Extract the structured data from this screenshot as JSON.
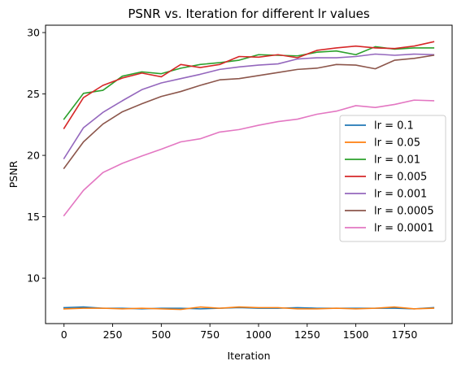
{
  "chart_data": {
    "type": "line",
    "title": "PSNR vs. Iteration for different lr values",
    "xlabel": "Iteration",
    "ylabel": "PSNR",
    "xlim": [
      -95,
      1995
    ],
    "ylim": [
      6.3,
      30.6
    ],
    "x_ticks": [
      0,
      250,
      500,
      750,
      1000,
      1250,
      1500,
      1750
    ],
    "y_ticks": [
      10,
      15,
      20,
      25,
      30
    ],
    "grid": false,
    "legend_position": "center-right",
    "x": [
      0,
      100,
      200,
      300,
      400,
      500,
      600,
      700,
      800,
      900,
      1000,
      1100,
      1200,
      1300,
      1400,
      1500,
      1600,
      1700,
      1800,
      1900
    ],
    "series": [
      {
        "name": "lr = 0.1",
        "color": "#1f77b4",
        "values": [
          7.6,
          7.65,
          7.55,
          7.55,
          7.5,
          7.55,
          7.55,
          7.5,
          7.55,
          7.6,
          7.55,
          7.55,
          7.6,
          7.55,
          7.55,
          7.55,
          7.55,
          7.55,
          7.5,
          7.6
        ]
      },
      {
        "name": "lr = 0.05",
        "color": "#ff7f0e",
        "values": [
          7.5,
          7.55,
          7.55,
          7.5,
          7.55,
          7.5,
          7.45,
          7.65,
          7.55,
          7.65,
          7.6,
          7.6,
          7.5,
          7.5,
          7.55,
          7.5,
          7.55,
          7.65,
          7.5,
          7.55
        ]
      },
      {
        "name": "lr = 0.01",
        "color": "#2ca02c",
        "values": [
          22.95,
          25.05,
          25.3,
          26.45,
          26.8,
          26.65,
          27.1,
          27.4,
          27.55,
          27.75,
          28.2,
          28.15,
          28.1,
          28.4,
          28.5,
          28.2,
          28.85,
          28.65,
          28.75,
          28.75
        ]
      },
      {
        "name": "lr = 0.005",
        "color": "#d62728",
        "values": [
          22.2,
          24.7,
          25.7,
          26.3,
          26.7,
          26.4,
          27.4,
          27.15,
          27.4,
          28.05,
          28.0,
          28.2,
          27.95,
          28.55,
          28.75,
          28.9,
          28.75,
          28.7,
          28.9,
          29.25
        ]
      },
      {
        "name": "lr = 0.001",
        "color": "#9467bd",
        "values": [
          19.75,
          22.25,
          23.5,
          24.45,
          25.35,
          25.9,
          26.25,
          26.6,
          27.0,
          27.2,
          27.35,
          27.45,
          27.85,
          27.95,
          27.95,
          28.05,
          28.25,
          28.15,
          28.25,
          28.2
        ]
      },
      {
        "name": "lr = 0.0005",
        "color": "#8c564b",
        "values": [
          18.95,
          21.1,
          22.55,
          23.55,
          24.2,
          24.8,
          25.2,
          25.7,
          26.15,
          26.25,
          26.5,
          26.75,
          27.0,
          27.1,
          27.4,
          27.35,
          27.05,
          27.75,
          27.9,
          28.15
        ]
      },
      {
        "name": "lr = 0.0001",
        "color": "#e377c2",
        "values": [
          15.1,
          17.15,
          18.6,
          19.35,
          19.95,
          20.5,
          21.1,
          21.35,
          21.9,
          22.1,
          22.45,
          22.75,
          22.95,
          23.35,
          23.6,
          24.05,
          23.9,
          24.15,
          24.5,
          24.45
        ]
      }
    ]
  }
}
